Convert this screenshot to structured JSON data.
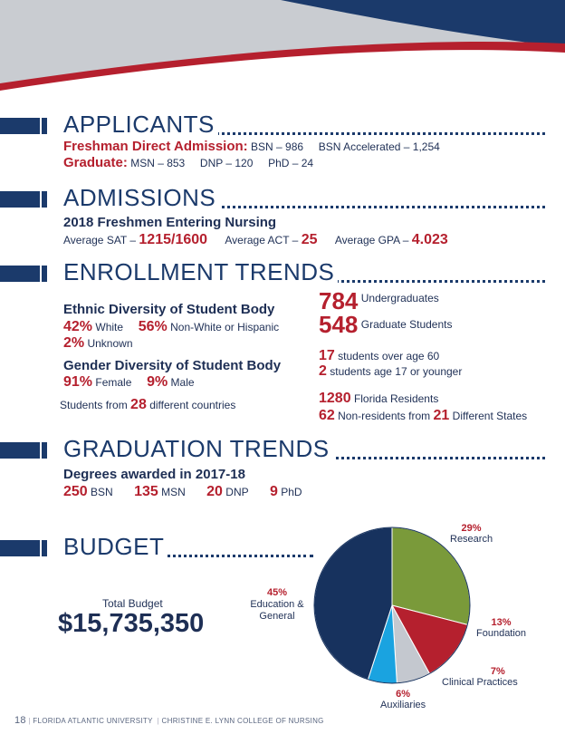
{
  "applicants": {
    "title": "APPLICANTS",
    "freshman_label": "Freshman Direct Admission:",
    "bsn": "BSN – 986",
    "bsn_accel": "BSN Accelerated – 1,254",
    "graduate_label": "Graduate:",
    "msn": "MSN – 853",
    "dnp": "DNP – 120",
    "phd": "PhD – 24"
  },
  "admissions": {
    "title": "ADMISSIONS",
    "subtitle": "2018 Freshmen Entering Nursing",
    "sat_label": "Average SAT –",
    "sat_value": "1215/1600",
    "act_label": "Average ACT –",
    "act_value": "25",
    "gpa_label": "Average GPA –",
    "gpa_value": "4.023"
  },
  "enrollment": {
    "title": "ENROLLMENT TRENDS",
    "ethnic_heading": "Ethnic Diversity of Student Body",
    "white_pct": "42%",
    "white_label": "White",
    "nonwhite_pct": "56%",
    "nonwhite_label": "Non-White or Hispanic",
    "unknown_pct": "2%",
    "unknown_label": "Unknown",
    "gender_heading": "Gender Diversity of Student Body",
    "female_pct": "91%",
    "female_label": "Female",
    "male_pct": "9%",
    "male_label": "Male",
    "countries_pre": "Students from",
    "countries_value": "28",
    "countries_post": "different countries",
    "undergrad_value": "784",
    "undergrad_label": "Undergraduates",
    "grad_value": "548",
    "grad_label": "Graduate Students",
    "over60_value": "17",
    "over60_label": "students over age 60",
    "under17_value": "2",
    "under17_label": "students age 17 or younger",
    "fl_value": "1280",
    "fl_label": "Florida Residents",
    "nonres_value": "62",
    "nonres_label": "Non-residents from",
    "states_value": "21",
    "states_label": "Different States"
  },
  "graduation": {
    "title": "GRADUATION TRENDS",
    "subtitle": "Degrees awarded in 2017-18",
    "bsn_value": "250",
    "bsn_label": "BSN",
    "msn_value": "135",
    "msn_label": "MSN",
    "dnp_value": "20",
    "dnp_label": "DNP",
    "phd_value": "9",
    "phd_label": "PhD"
  },
  "budget": {
    "title": "BUDGET",
    "total_label": "Total Budget",
    "total_value": "$15,735,350"
  },
  "chart_data": {
    "type": "pie",
    "title": "",
    "slices": [
      {
        "name": "Research",
        "label_line": "Research",
        "pct": "29%",
        "value": 29,
        "color": "#7a9a3a"
      },
      {
        "name": "Foundation",
        "label_line": "Foundation",
        "pct": "13%",
        "value": 13,
        "color": "#b5202e"
      },
      {
        "name": "Clinical Practices",
        "label_line": "Clinical Practices",
        "pct": "7%",
        "value": 7,
        "color": "#c4c8cf"
      },
      {
        "name": "Auxiliaries",
        "label_line": "Auxiliaries",
        "pct": "6%",
        "value": 6,
        "color": "#1aa3e0"
      },
      {
        "name": "Education & General",
        "label_line": "Education & General",
        "pct": "45%",
        "value": 45,
        "color": "#17325e"
      }
    ]
  },
  "footer": {
    "page": "18",
    "org": "FLORIDA ATLANTIC UNIVERSITY",
    "college": "CHRISTINE E. LYNN COLLEGE OF NURSING"
  },
  "colors": {
    "navy": "#1b3a6b",
    "red": "#b5202e",
    "gray": "#c5c8cc"
  }
}
